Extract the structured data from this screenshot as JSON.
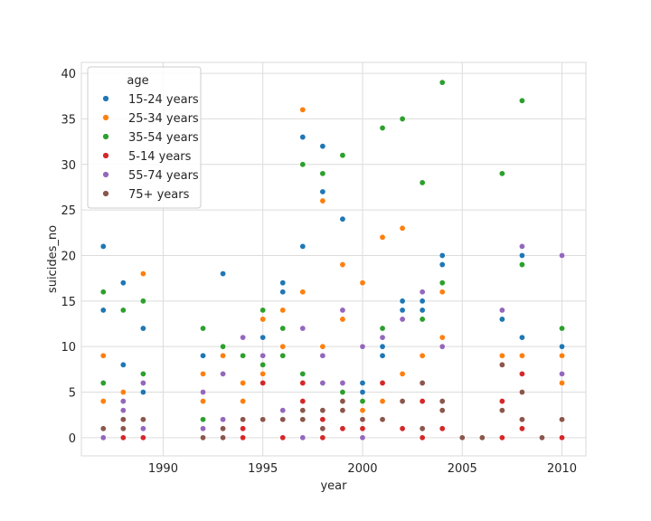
{
  "chart_data": {
    "type": "scatter",
    "title": "",
    "xlabel": "year",
    "ylabel": "suicides_no",
    "xlim": [
      1985.9,
      2011.2
    ],
    "ylim": [
      -2,
      41.2
    ],
    "xticks": [
      1990,
      1995,
      2000,
      2005,
      2010
    ],
    "yticks": [
      0,
      5,
      10,
      15,
      20,
      25,
      30,
      35,
      40
    ],
    "grid": true,
    "legend": {
      "title": "age",
      "placement": "top-left"
    },
    "series": [
      {
        "name": "15-24 years",
        "color": "#1f77b4",
        "points": [
          [
            1987,
            21
          ],
          [
            1987,
            14
          ],
          [
            1988,
            17
          ],
          [
            1988,
            8
          ],
          [
            1989,
            12
          ],
          [
            1989,
            5
          ],
          [
            1992,
            9
          ],
          [
            1993,
            18
          ],
          [
            1995,
            11
          ],
          [
            1996,
            17
          ],
          [
            1996,
            16
          ],
          [
            1997,
            33
          ],
          [
            1997,
            21
          ],
          [
            1998,
            32
          ],
          [
            1998,
            27
          ],
          [
            1999,
            24
          ],
          [
            2000,
            6
          ],
          [
            2000,
            5
          ],
          [
            2001,
            10
          ],
          [
            2001,
            9
          ],
          [
            2002,
            15
          ],
          [
            2002,
            14
          ],
          [
            2003,
            15
          ],
          [
            2003,
            14
          ],
          [
            2004,
            20
          ],
          [
            2004,
            19
          ],
          [
            2007,
            13
          ],
          [
            2008,
            20
          ],
          [
            2008,
            11
          ],
          [
            2010,
            10
          ]
        ]
      },
      {
        "name": "25-34 years",
        "color": "#ff7f0e",
        "points": [
          [
            1987,
            9
          ],
          [
            1987,
            4
          ],
          [
            1988,
            5
          ],
          [
            1989,
            18
          ],
          [
            1992,
            7
          ],
          [
            1992,
            4
          ],
          [
            1993,
            9
          ],
          [
            1994,
            6
          ],
          [
            1994,
            4
          ],
          [
            1995,
            13
          ],
          [
            1995,
            7
          ],
          [
            1996,
            14
          ],
          [
            1996,
            10
          ],
          [
            1997,
            36
          ],
          [
            1997,
            16
          ],
          [
            1998,
            26
          ],
          [
            1998,
            10
          ],
          [
            1999,
            19
          ],
          [
            1999,
            13
          ],
          [
            2000,
            17
          ],
          [
            2000,
            3
          ],
          [
            2001,
            22
          ],
          [
            2001,
            4
          ],
          [
            2002,
            23
          ],
          [
            2002,
            7
          ],
          [
            2003,
            9
          ],
          [
            2004,
            16
          ],
          [
            2004,
            11
          ],
          [
            2007,
            9
          ],
          [
            2008,
            9
          ],
          [
            2010,
            9
          ],
          [
            2010,
            6
          ]
        ]
      },
      {
        "name": "35-54 years",
        "color": "#2ca02c",
        "points": [
          [
            1987,
            16
          ],
          [
            1987,
            6
          ],
          [
            1988,
            14
          ],
          [
            1989,
            15
          ],
          [
            1989,
            7
          ],
          [
            1992,
            12
          ],
          [
            1992,
            2
          ],
          [
            1993,
            10
          ],
          [
            1994,
            9
          ],
          [
            1995,
            14
          ],
          [
            1995,
            8
          ],
          [
            1996,
            12
          ],
          [
            1996,
            9
          ],
          [
            1997,
            30
          ],
          [
            1997,
            7
          ],
          [
            1998,
            29
          ],
          [
            1999,
            31
          ],
          [
            1999,
            5
          ],
          [
            2000,
            4
          ],
          [
            2001,
            34
          ],
          [
            2001,
            12
          ],
          [
            2002,
            35
          ],
          [
            2003,
            28
          ],
          [
            2003,
            13
          ],
          [
            2004,
            39
          ],
          [
            2004,
            17
          ],
          [
            2007,
            29
          ],
          [
            2008,
            37
          ],
          [
            2008,
            19
          ],
          [
            2010,
            12
          ]
        ]
      },
      {
        "name": "5-14 years",
        "color": "#d62728",
        "points": [
          [
            1987,
            0
          ],
          [
            1988,
            0
          ],
          [
            1989,
            0
          ],
          [
            1992,
            0
          ],
          [
            1993,
            0
          ],
          [
            1994,
            0
          ],
          [
            1994,
            1
          ],
          [
            1995,
            6
          ],
          [
            1996,
            0
          ],
          [
            1997,
            4
          ],
          [
            1997,
            6
          ],
          [
            1998,
            2
          ],
          [
            1998,
            0
          ],
          [
            1999,
            1
          ],
          [
            2000,
            1
          ],
          [
            2001,
            6
          ],
          [
            2002,
            1
          ],
          [
            2003,
            4
          ],
          [
            2003,
            0
          ],
          [
            2004,
            1
          ],
          [
            2007,
            4
          ],
          [
            2007,
            0
          ],
          [
            2008,
            7
          ],
          [
            2008,
            1
          ],
          [
            2010,
            0
          ]
        ]
      },
      {
        "name": "55-74 years",
        "color": "#9467bd",
        "points": [
          [
            1987,
            0
          ],
          [
            1988,
            4
          ],
          [
            1988,
            3
          ],
          [
            1988,
            1
          ],
          [
            1989,
            6
          ],
          [
            1989,
            1
          ],
          [
            1992,
            5
          ],
          [
            1992,
            1
          ],
          [
            1993,
            7
          ],
          [
            1993,
            2
          ],
          [
            1994,
            11
          ],
          [
            1995,
            9
          ],
          [
            1996,
            3
          ],
          [
            1997,
            12
          ],
          [
            1997,
            0
          ],
          [
            1998,
            9
          ],
          [
            1998,
            6
          ],
          [
            1999,
            14
          ],
          [
            1999,
            6
          ],
          [
            2000,
            10
          ],
          [
            2000,
            0
          ],
          [
            2001,
            11
          ],
          [
            2002,
            13
          ],
          [
            2003,
            16
          ],
          [
            2004,
            10
          ],
          [
            2007,
            14
          ],
          [
            2008,
            21
          ],
          [
            2010,
            20
          ],
          [
            2010,
            7
          ]
        ]
      },
      {
        "name": "75+ years",
        "color": "#8c564b",
        "points": [
          [
            1987,
            1
          ],
          [
            1988,
            2
          ],
          [
            1988,
            1
          ],
          [
            1989,
            2
          ],
          [
            1992,
            0
          ],
          [
            1993,
            1
          ],
          [
            1993,
            0
          ],
          [
            1994,
            2
          ],
          [
            1995,
            2
          ],
          [
            1996,
            2
          ],
          [
            1997,
            3
          ],
          [
            1997,
            2
          ],
          [
            1998,
            3
          ],
          [
            1998,
            1
          ],
          [
            1999,
            4
          ],
          [
            1999,
            3
          ],
          [
            2000,
            2
          ],
          [
            2001,
            2
          ],
          [
            2002,
            4
          ],
          [
            2003,
            6
          ],
          [
            2003,
            1
          ],
          [
            2004,
            4
          ],
          [
            2004,
            3
          ],
          [
            2005,
            0
          ],
          [
            2006,
            0
          ],
          [
            2007,
            8
          ],
          [
            2007,
            3
          ],
          [
            2008,
            5
          ],
          [
            2008,
            2
          ],
          [
            2009,
            0
          ],
          [
            2010,
            2
          ]
        ]
      }
    ]
  }
}
